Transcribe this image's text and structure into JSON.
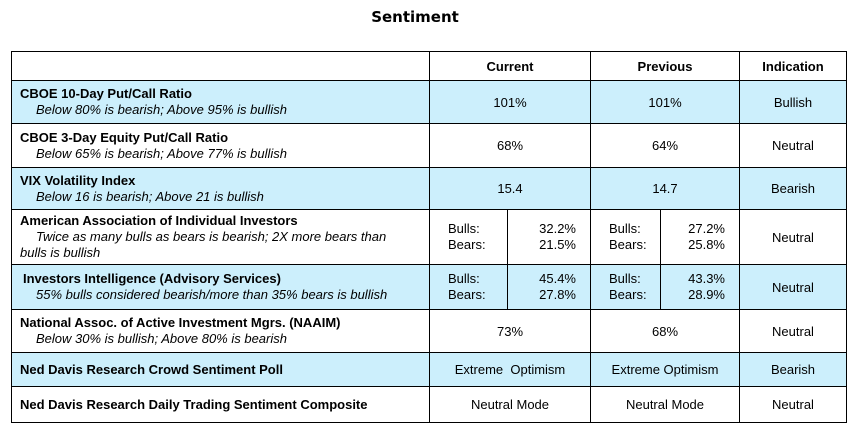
{
  "title": "Sentiment",
  "headers": {
    "blank": "",
    "current": "Current",
    "previous": "Previous",
    "indication": "Indication"
  },
  "rows": [
    {
      "name": "CBOE 10-Day Put/Call Ratio",
      "desc": "Below 80% is bearish; Above 95% is bullish",
      "current": "101%",
      "previous": "101%",
      "indication": "Bullish"
    },
    {
      "name": "CBOE 3-Day Equity Put/Call Ratio",
      "desc": "Below 65% is bearish; Above 77% is bullish",
      "current": "68%",
      "previous": "64%",
      "indication": "Neutral"
    },
    {
      "name": "VIX Volatility Index",
      "desc": "Below 16 is bearish; Above 21 is bullish",
      "current": "15.4",
      "previous": "14.7",
      "indication": "Bearish"
    },
    {
      "name": "American Association of Individual Investors",
      "desc": "Twice as many bulls as bears is bearish; 2X more bears than bulls is bullish",
      "bulls_label": "Bulls:",
      "bears_label": "Bears:",
      "current_bulls": "32.2%",
      "current_bears": "21.5%",
      "previous_bulls": "27.2%",
      "previous_bears": "25.8%",
      "indication": "Neutral"
    },
    {
      "name": "Investors Intelligence (Advisory Services)",
      "desc": "55% bulls considered bearish/more than 35% bears is bullish",
      "bulls_label": "Bulls:",
      "bears_label": "Bears:",
      "current_bulls": "45.4%",
      "current_bears": "27.8%",
      "previous_bulls": "43.3%",
      "previous_bears": "28.9%",
      "indication": "Neutral"
    },
    {
      "name": "National Assoc. of Active Investment Mgrs. (NAAIM)",
      "desc": "Below 30% is bullish; Above 80% is bearish",
      "current": "73%",
      "previous": "68%",
      "indication": "Neutral"
    },
    {
      "name": "Ned Davis Research Crowd Sentiment Poll",
      "desc": "",
      "current": "Extreme  Optimism",
      "previous": "Extreme Optimism",
      "indication": "Bearish"
    },
    {
      "name": "Ned Davis Research Daily Trading Sentiment Composite",
      "desc": "",
      "current": "Neutral Mode",
      "previous": "Neutral Mode",
      "indication": "Neutral"
    }
  ],
  "colors": {
    "shade": "#cceffc"
  }
}
